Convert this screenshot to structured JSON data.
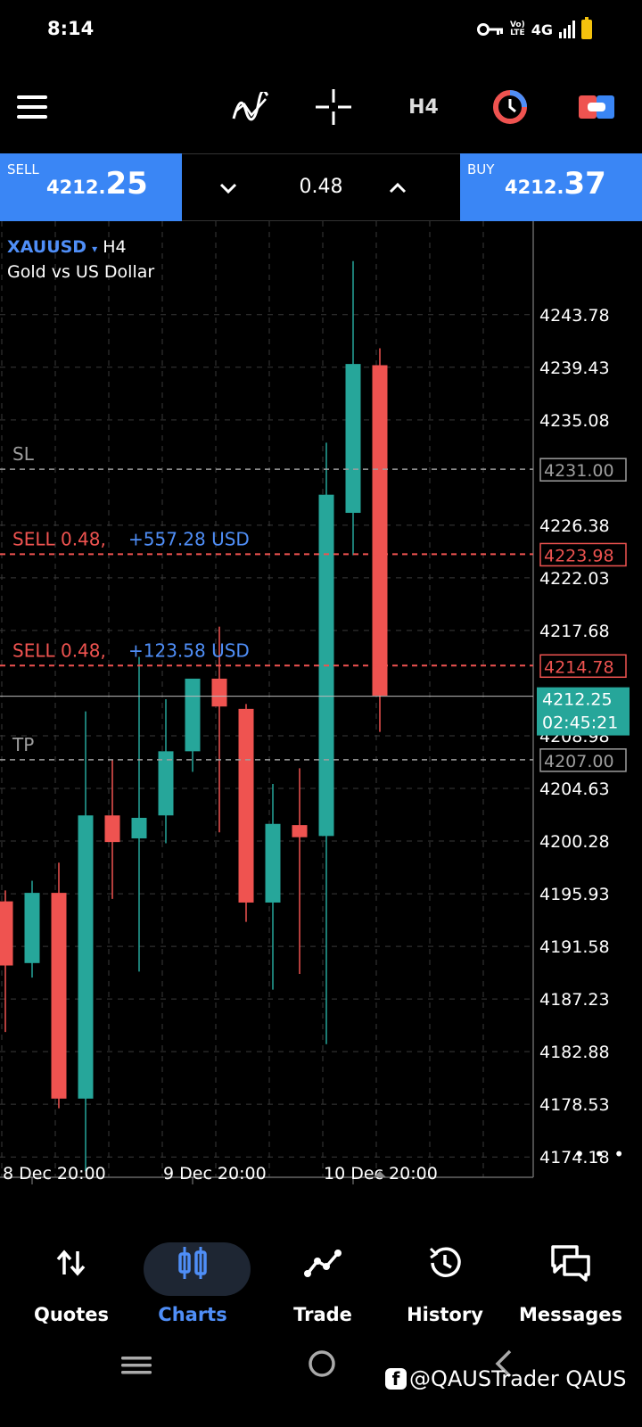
{
  "status_bar": {
    "time": "8:14",
    "network": "4G",
    "volte": [
      "Vo)",
      "LTE"
    ],
    "icons": [
      "key-icon",
      "signal-icon",
      "battery-icon"
    ]
  },
  "toolbar": {
    "menu_icon": "hamburger-menu-icon",
    "indicators_icon": "indicators-icon",
    "crosshair_icon": "crosshair-icon",
    "timeframe": "H4",
    "clock_icon": "trading-clock-icon",
    "trade_icon": "trade-toggle-icon"
  },
  "trade_panel": {
    "sell_label": "SELL",
    "sell_price_small": "4212.",
    "sell_price_big": "25",
    "buy_label": "BUY",
    "buy_price_small": "4212.",
    "buy_price_big": "37",
    "volume": "0.48"
  },
  "chart": {
    "symbol": "XAUUSD",
    "caret": "▾",
    "timeframe": "H4",
    "description": "Gold vs US Dollar",
    "more": "• • •"
  },
  "chart_data": {
    "type": "candlestick",
    "y_ticks": [
      "4243.78",
      "4239.43",
      "4235.08",
      "4226.38",
      "4222.03",
      "4217.68",
      "4208.98",
      "4204.63",
      "4200.28",
      "4195.93",
      "4191.58",
      "4187.23",
      "4182.88",
      "4178.53",
      "4174.18"
    ],
    "ylim": [
      4172.5,
      4251.5
    ],
    "x_labels": [
      {
        "label": "8 Dec 20:00",
        "index": 1
      },
      {
        "label": "9 Dec 20:00",
        "index": 7
      },
      {
        "label": "10 Dec 20:00",
        "index": 13
      }
    ],
    "candles": [
      {
        "o": 4195.3,
        "h": 4196.2,
        "l": 4184.5,
        "c": 4190.0
      },
      {
        "o": 4190.2,
        "h": 4197.0,
        "l": 4189.0,
        "c": 4196.0
      },
      {
        "o": 4196.0,
        "h": 4198.5,
        "l": 4178.2,
        "c": 4179.0
      },
      {
        "o": 4179.0,
        "h": 4211.0,
        "l": 4173.0,
        "c": 4202.4
      },
      {
        "o": 4202.4,
        "h": 4207.0,
        "l": 4195.5,
        "c": 4200.2
      },
      {
        "o": 4200.5,
        "h": 4215.5,
        "l": 4189.5,
        "c": 4202.2
      },
      {
        "o": 4202.4,
        "h": 4212.0,
        "l": 4200.1,
        "c": 4207.7
      },
      {
        "o": 4207.7,
        "h": 4213.5,
        "l": 4206.0,
        "c": 4213.7
      },
      {
        "o": 4213.7,
        "h": 4218.0,
        "l": 4201.0,
        "c": 4211.4
      },
      {
        "o": 4211.2,
        "h": 4211.6,
        "l": 4193.6,
        "c": 4195.2
      },
      {
        "o": 4195.2,
        "h": 4205.0,
        "l": 4188.0,
        "c": 4201.7
      },
      {
        "o": 4201.6,
        "h": 4206.3,
        "l": 4189.3,
        "c": 4200.6
      },
      {
        "o": 4200.7,
        "h": 4233.2,
        "l": 4183.5,
        "c": 4228.9
      },
      {
        "o": 4227.4,
        "h": 4248.2,
        "l": 4223.9,
        "c": 4239.7
      },
      {
        "o": 4239.6,
        "h": 4241.0,
        "l": 4209.3,
        "c": 4212.3
      }
    ],
    "lines": [
      {
        "label": "SL",
        "price": "4231.00",
        "value": 4231.0,
        "kind": "sl"
      },
      {
        "label": "SELL 0.48,",
        "profit": "+557.28 USD",
        "price": "4223.98",
        "value": 4223.98,
        "kind": "order"
      },
      {
        "label": "SELL 0.48,",
        "profit": "+123.58 USD",
        "price": "4214.78",
        "value": 4214.78,
        "kind": "order"
      },
      {
        "label": "TP",
        "price": "4207.00",
        "value": 4207.0,
        "kind": "tp"
      }
    ],
    "current": {
      "price": "4212.25",
      "value": 4212.25,
      "countdown": "02:45:21"
    },
    "colors": {
      "bull": "#26a69a",
      "bear": "#ef5350",
      "grid": "#3a3a3a",
      "sl_tp": "#9e9e9e",
      "order": "#ef5350",
      "profit": "#4f8ef7",
      "axis_text": "#ffffff"
    }
  },
  "bottom_nav": [
    {
      "label": "Quotes",
      "icon": "quotes-icon",
      "active": false
    },
    {
      "label": "Charts",
      "icon": "charts-icon",
      "active": true
    },
    {
      "label": "Trade",
      "icon": "trade-icon",
      "active": false
    },
    {
      "label": "History",
      "icon": "history-icon",
      "active": false
    },
    {
      "label": "Messages",
      "icon": "messages-icon",
      "active": false
    }
  ],
  "watermark": "@QAUSTrader QAUS"
}
